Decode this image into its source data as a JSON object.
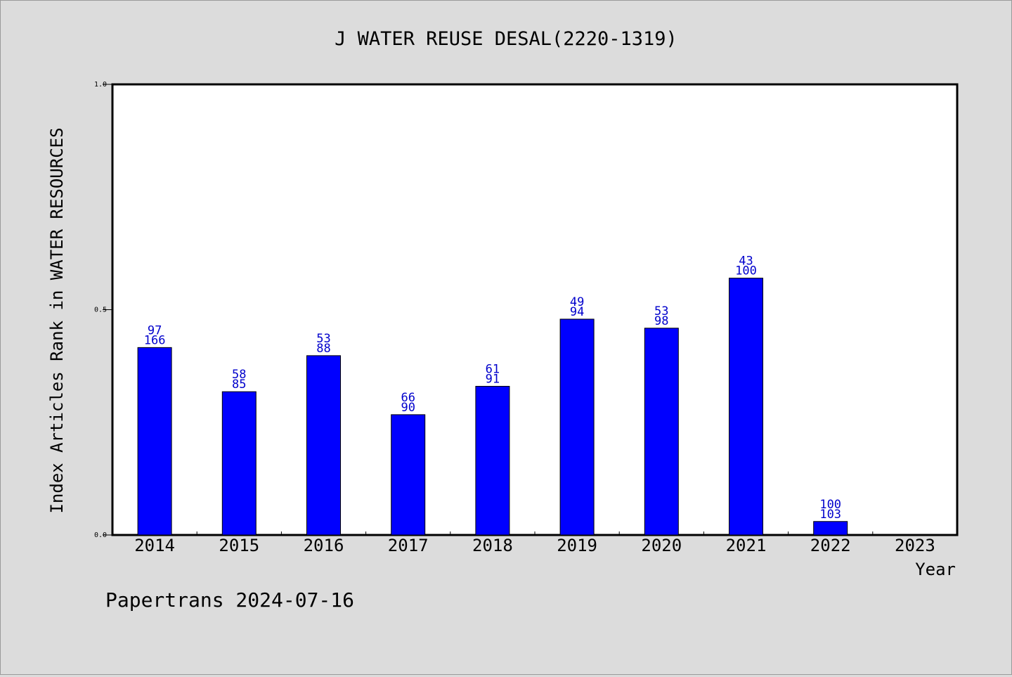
{
  "chart_data": {
    "type": "bar",
    "title": "J WATER REUSE DESAL(2220-1319)",
    "xlabel": "Year",
    "ylabel": "Index Articles Rank in WATER RESOURCES",
    "footer": "Papertrans 2024-07-16",
    "categories": [
      "2014",
      "2015",
      "2016",
      "2017",
      "2018",
      "2019",
      "2020",
      "2021",
      "2022",
      "2023"
    ],
    "values": [
      0.416,
      0.318,
      0.398,
      0.267,
      0.33,
      0.479,
      0.459,
      0.57,
      0.03,
      null
    ],
    "labels_top": [
      "97",
      "58",
      "53",
      "66",
      "61",
      "49",
      "53",
      "43",
      "100",
      ""
    ],
    "labels_bottom": [
      "166",
      "85",
      "88",
      "90",
      "91",
      "94",
      "98",
      "100",
      "103",
      ""
    ],
    "ylim": [
      0,
      1.0
    ],
    "yticks": [
      "0.0",
      "0.5",
      "1.0"
    ],
    "bar_color": "#0000ff",
    "label_color": "#0000cc",
    "plot_background": "#ffffff",
    "page_background": "#dcdcdc",
    "grid": false
  }
}
